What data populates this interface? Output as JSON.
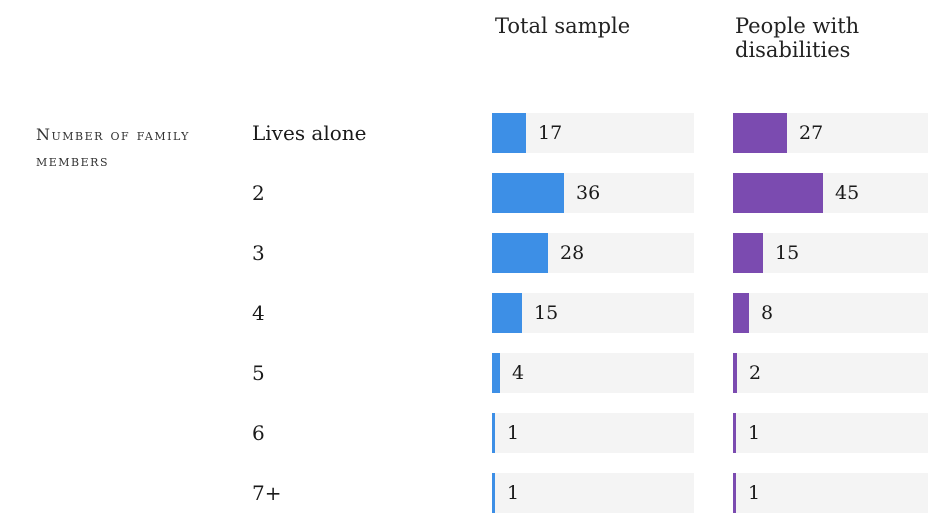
{
  "chart_data": {
    "type": "bar",
    "section_label": "Number of family members",
    "categories": [
      "Lives alone",
      "2",
      "3",
      "4",
      "5",
      "6",
      "7+"
    ],
    "series": [
      {
        "name": "Total sample",
        "values": [
          17,
          36,
          28,
          15,
          4,
          1,
          1
        ],
        "color": "#3d8fe6"
      },
      {
        "name": "People with disabilities",
        "values": [
          27,
          45,
          15,
          8,
          2,
          1,
          1
        ],
        "color": "#7b4bb0"
      }
    ],
    "track_color": "#f4f4f4",
    "xlim": [
      0,
      100
    ]
  }
}
